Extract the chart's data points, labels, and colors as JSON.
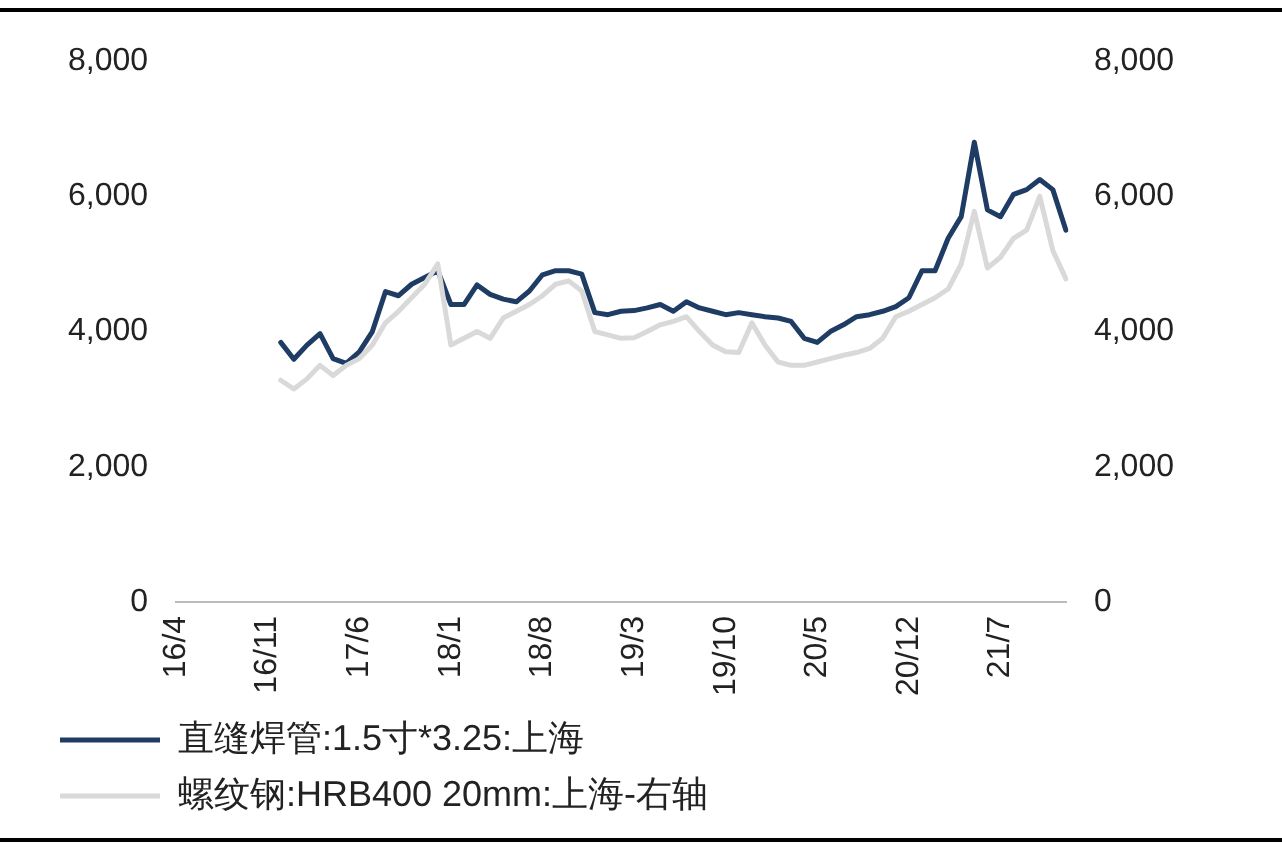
{
  "chart_data": {
    "type": "line",
    "categories": [
      "16/4",
      null,
      null,
      null,
      null,
      null,
      null,
      "16/11",
      null,
      null,
      null,
      null,
      null,
      null,
      "17/6",
      null,
      null,
      null,
      null,
      null,
      null,
      "18/1",
      null,
      null,
      null,
      null,
      null,
      null,
      "18/8",
      null,
      null,
      null,
      null,
      null,
      null,
      "19/3",
      null,
      null,
      null,
      null,
      null,
      null,
      "19/10",
      null,
      null,
      null,
      null,
      null,
      null,
      "20/5",
      null,
      null,
      null,
      null,
      null,
      null,
      "20/12",
      null,
      null,
      null,
      null,
      null,
      null,
      "21/7",
      null,
      null,
      null,
      null,
      null
    ],
    "series": [
      {
        "name": "直缝焊管:1.5寸*3.25:上海",
        "color": "#1f3c64",
        "values": [
          null,
          null,
          null,
          null,
          null,
          null,
          null,
          null,
          3840,
          3590,
          3800,
          3970,
          3600,
          3530,
          3700,
          4000,
          4590,
          4530,
          4700,
          4800,
          4900,
          4400,
          4400,
          4690,
          4550,
          4480,
          4440,
          4600,
          4840,
          4900,
          4900,
          4850,
          4280,
          4250,
          4300,
          4310,
          4350,
          4400,
          4300,
          4440,
          4350,
          4300,
          4250,
          4280,
          4250,
          4220,
          4200,
          4150,
          3900,
          3840,
          4000,
          4100,
          4220,
          4250,
          4300,
          4370,
          4500,
          4900,
          4900,
          5380,
          5700,
          6800,
          5800,
          5700,
          6030,
          6100,
          6250,
          6100,
          5500
        ]
      },
      {
        "name": "螺纹钢:HRB400 20mm:上海-右轴",
        "color": "#d9d9d9",
        "axis": "y2",
        "values": [
          null,
          null,
          null,
          null,
          null,
          null,
          null,
          null,
          3280,
          3150,
          3300,
          3500,
          3350,
          3500,
          3600,
          3800,
          4130,
          4300,
          4500,
          4700,
          5000,
          3800,
          3900,
          4000,
          3900,
          4200,
          4300,
          4400,
          4530,
          4700,
          4750,
          4600,
          4000,
          3950,
          3900,
          3910,
          4000,
          4100,
          4150,
          4220,
          4000,
          3800,
          3700,
          3690,
          4130,
          3800,
          3550,
          3500,
          3500,
          3550,
          3600,
          3650,
          3690,
          3750,
          3900,
          4220,
          4300,
          4400,
          4500,
          4630,
          5000,
          5780,
          4940,
          5100,
          5380,
          5500,
          6000,
          5200,
          4780
        ]
      }
    ],
    "ylim": [
      0,
      8000
    ],
    "yticks": [
      {
        "value": 0,
        "label": "0"
      },
      {
        "value": 2000,
        "label": "2,000"
      },
      {
        "value": 4000,
        "label": "4,000"
      },
      {
        "value": 6000,
        "label": "6,000"
      },
      {
        "value": 8000,
        "label": "8,000"
      }
    ],
    "y2lim": [
      0,
      8000
    ],
    "y2ticks": [
      {
        "value": 0,
        "label": "0"
      },
      {
        "value": 2000,
        "label": "2,000"
      },
      {
        "value": 4000,
        "label": "4,000"
      },
      {
        "value": 6000,
        "label": "6,000"
      },
      {
        "value": 8000,
        "label": "8,000"
      }
    ],
    "grid": false,
    "legend": "bottom",
    "marker": "none",
    "line_style": "solid"
  }
}
